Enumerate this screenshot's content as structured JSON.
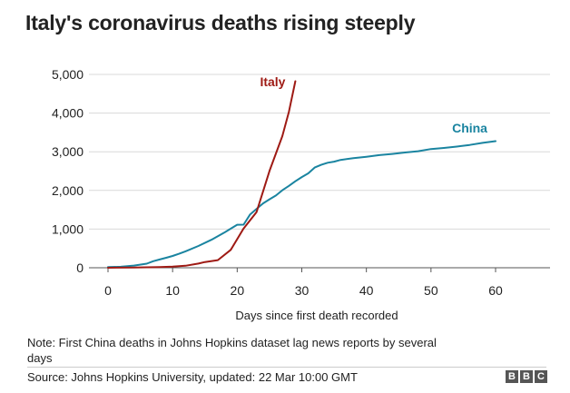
{
  "title": "Italy's coronavirus deaths rising steeply",
  "note": "Note: First China deaths in Johns Hopkins dataset lag news reports by several days",
  "source": "Source: Johns Hopkins University, updated: 22 Mar 10:00 GMT",
  "logo": [
    "B",
    "B",
    "C"
  ],
  "colors": {
    "italy": "#9e1a14",
    "china": "#1a84a0",
    "grid": "#d9d9d9",
    "axis": "#555555"
  },
  "chart_data": {
    "type": "line",
    "title": "Italy's coronavirus deaths rising steeply",
    "xlabel": "Days since first death recorded",
    "ylabel": "",
    "xlim": [
      0,
      60
    ],
    "ylim": [
      0,
      5000
    ],
    "xticks": [
      0,
      10,
      20,
      30,
      40,
      50,
      60
    ],
    "yticks": [
      0,
      1000,
      2000,
      3000,
      4000,
      5000
    ],
    "ytick_labels": [
      "0",
      "1,000",
      "2,000",
      "3,000",
      "4,000",
      "5,000"
    ],
    "grid": true,
    "series": [
      {
        "name": "China",
        "label_anchor": [
          56,
          3500
        ],
        "x": [
          0,
          2,
          4,
          6,
          7,
          8,
          9,
          10,
          11,
          12,
          14,
          16,
          18,
          20,
          21,
          22,
          23,
          24,
          25,
          26,
          27,
          28,
          29,
          30,
          31,
          32,
          33,
          34,
          35,
          36,
          38,
          40,
          42,
          44,
          46,
          48,
          50,
          52,
          54,
          56,
          58,
          60
        ],
        "y": [
          17,
          25,
          56,
          106,
          170,
          213,
          259,
          304,
          361,
          425,
          563,
          724,
          908,
          1113,
          1115,
          1380,
          1523,
          1665,
          1770,
          1868,
          2004,
          2118,
          2236,
          2345,
          2442,
          2592,
          2663,
          2715,
          2744,
          2788,
          2835,
          2870,
          2912,
          2943,
          2981,
          3013,
          3070,
          3099,
          3133,
          3176,
          3230,
          3274
        ]
      },
      {
        "name": "Italy",
        "label_anchor": [
          25.5,
          4700
        ],
        "x": [
          0,
          4,
          8,
          10,
          12,
          14,
          15,
          17,
          19,
          21,
          23,
          25,
          27,
          28,
          29
        ],
        "y": [
          1,
          7,
          17,
          29,
          52,
          107,
          148,
          197,
          463,
          1016,
          1441,
          2503,
          3405,
          4032,
          4825
        ]
      }
    ]
  }
}
